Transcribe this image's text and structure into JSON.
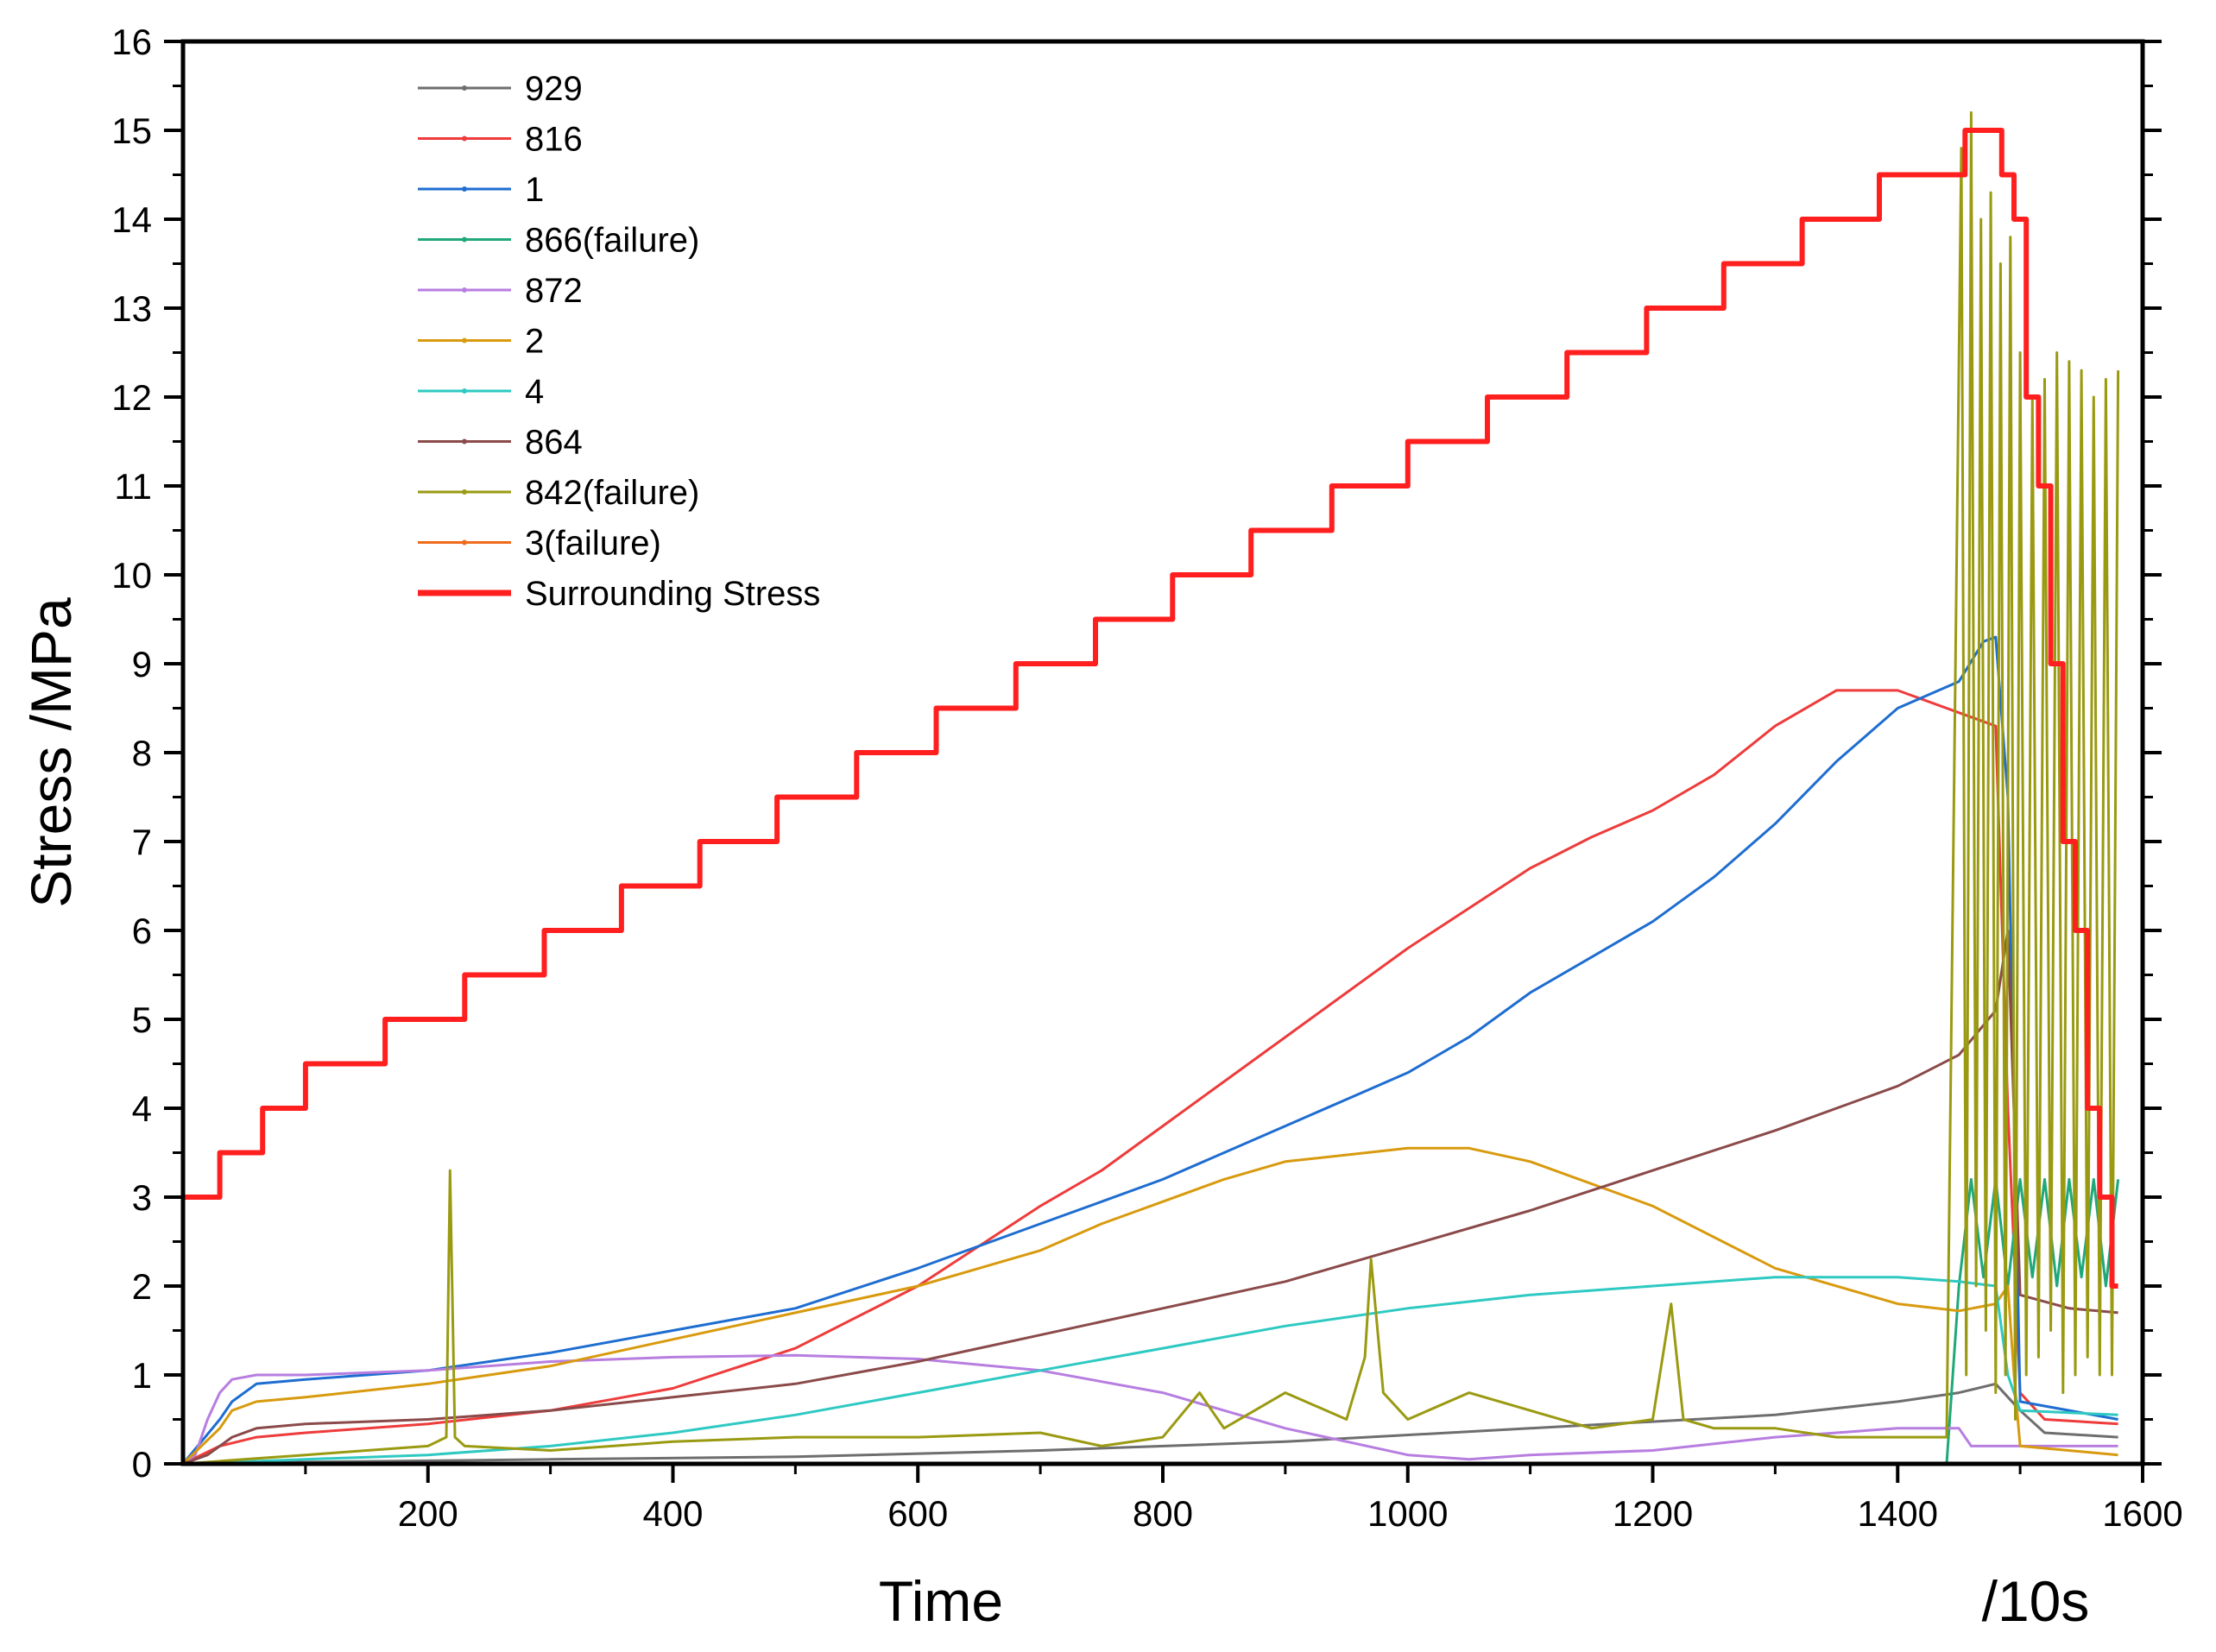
{
  "chart_data": {
    "type": "line",
    "title": "",
    "xlabel": "Time",
    "xlabel_unit": "/10s",
    "ylabel": "Stress /MPa",
    "xlim": [
      0,
      1600
    ],
    "ylim": [
      0,
      16
    ],
    "x_ticks": [
      200,
      400,
      600,
      800,
      1000,
      1200,
      1400,
      1600
    ],
    "y_ticks": [
      0,
      1,
      2,
      3,
      4,
      5,
      6,
      7,
      8,
      9,
      10,
      11,
      12,
      13,
      14,
      15,
      16
    ],
    "grid": false,
    "legend_position": "top-left",
    "series": [
      {
        "name": "929",
        "color": "#6e6e6e",
        "x": [
          0,
          100,
          300,
          500,
          700,
          900,
          1100,
          1300,
          1400,
          1450,
          1480,
          1500,
          1520,
          1580
        ],
        "y": [
          0,
          0.02,
          0.05,
          0.08,
          0.15,
          0.25,
          0.4,
          0.55,
          0.7,
          0.8,
          0.9,
          0.6,
          0.35,
          0.3
        ]
      },
      {
        "name": "816",
        "color": "#ee3b3b",
        "x": [
          0,
          30,
          60,
          100,
          200,
          300,
          400,
          500,
          600,
          700,
          750,
          800,
          850,
          900,
          950,
          1000,
          1050,
          1100,
          1150,
          1200,
          1250,
          1300,
          1350,
          1400,
          1450,
          1480,
          1490,
          1500,
          1520,
          1580
        ],
        "y": [
          0,
          0.2,
          0.3,
          0.35,
          0.45,
          0.6,
          0.85,
          1.3,
          2.0,
          2.9,
          3.3,
          3.8,
          4.3,
          4.8,
          5.3,
          5.8,
          6.25,
          6.7,
          7.05,
          7.35,
          7.75,
          8.3,
          8.7,
          8.7,
          8.45,
          8.3,
          4.0,
          0.8,
          0.5,
          0.45
        ]
      },
      {
        "name": "1",
        "color": "#1e6dd0",
        "x": [
          0,
          30,
          40,
          60,
          100,
          200,
          300,
          400,
          500,
          600,
          700,
          750,
          800,
          900,
          1000,
          1050,
          1100,
          1150,
          1200,
          1250,
          1300,
          1350,
          1400,
          1450,
          1470,
          1480,
          1490,
          1500,
          1580
        ],
        "y": [
          0,
          0.5,
          0.7,
          0.9,
          0.95,
          1.05,
          1.25,
          1.5,
          1.75,
          2.2,
          2.7,
          2.95,
          3.2,
          3.8,
          4.4,
          4.8,
          5.3,
          5.7,
          6.1,
          6.6,
          7.2,
          7.9,
          8.5,
          8.8,
          9.25,
          9.3,
          7.5,
          0.7,
          0.5
        ]
      },
      {
        "name": "866(failure)",
        "color": "#1fa87a",
        "x": [
          0,
          1440,
          1450,
          1460,
          1470,
          1480,
          1490,
          1500,
          1510,
          1520,
          1530,
          1540,
          1550,
          1560,
          1570,
          1580
        ],
        "y": [
          0,
          0,
          2.0,
          3.2,
          2.1,
          3.2,
          2.0,
          3.2,
          2.1,
          3.2,
          2.0,
          3.2,
          2.1,
          3.2,
          2.0,
          3.2
        ]
      },
      {
        "name": "872",
        "color": "#b77ee0",
        "x": [
          0,
          10,
          20,
          30,
          40,
          60,
          100,
          200,
          300,
          400,
          500,
          600,
          700,
          800,
          900,
          1000,
          1050,
          1100,
          1200,
          1300,
          1400,
          1450,
          1460,
          1500,
          1580
        ],
        "y": [
          0,
          0.1,
          0.5,
          0.8,
          0.95,
          1.0,
          1.0,
          1.05,
          1.15,
          1.2,
          1.22,
          1.18,
          1.05,
          0.8,
          0.4,
          0.1,
          0.05,
          0.1,
          0.15,
          0.3,
          0.4,
          0.4,
          0.2,
          0.2,
          0.2
        ]
      },
      {
        "name": "2",
        "color": "#d89a0e",
        "x": [
          0,
          30,
          40,
          60,
          100,
          200,
          300,
          400,
          500,
          600,
          700,
          750,
          780,
          800,
          850,
          900,
          1000,
          1050,
          1100,
          1200,
          1300,
          1400,
          1450,
          1480,
          1490,
          1495,
          1500,
          1580
        ],
        "y": [
          0,
          0.4,
          0.6,
          0.7,
          0.75,
          0.9,
          1.1,
          1.4,
          1.7,
          2.0,
          2.4,
          2.7,
          2.85,
          2.95,
          3.2,
          3.4,
          3.55,
          3.55,
          3.4,
          2.9,
          2.2,
          1.8,
          1.72,
          1.8,
          2.0,
          1.0,
          0.2,
          0.1
        ]
      },
      {
        "name": "4",
        "color": "#2ec9c2",
        "x": [
          0,
          100,
          200,
          300,
          400,
          500,
          600,
          700,
          800,
          900,
          1000,
          1100,
          1200,
          1300,
          1400,
          1450,
          1480,
          1490,
          1500,
          1580
        ],
        "y": [
          0,
          0.05,
          0.1,
          0.2,
          0.35,
          0.55,
          0.8,
          1.05,
          1.3,
          1.55,
          1.75,
          1.9,
          2.0,
          2.1,
          2.1,
          2.05,
          2.0,
          1.0,
          0.6,
          0.55
        ]
      },
      {
        "name": "864",
        "color": "#8b4a4a",
        "x": [
          0,
          20,
          40,
          60,
          100,
          200,
          300,
          400,
          500,
          600,
          700,
          800,
          900,
          1000,
          1100,
          1200,
          1300,
          1400,
          1450,
          1480,
          1490,
          1500,
          1540,
          1580
        ],
        "y": [
          0,
          0.1,
          0.3,
          0.4,
          0.45,
          0.5,
          0.6,
          0.75,
          0.9,
          1.15,
          1.45,
          1.75,
          2.05,
          2.45,
          2.85,
          3.3,
          3.75,
          4.25,
          4.6,
          5.1,
          6.0,
          1.9,
          1.75,
          1.7
        ]
      },
      {
        "name": "842(failure)",
        "color": "#9a9a12",
        "x": [
          0,
          50,
          100,
          150,
          200,
          215,
          218,
          222,
          230,
          300,
          400,
          500,
          600,
          700,
          750,
          800,
          830,
          850,
          900,
          950,
          965,
          970,
          980,
          1000,
          1050,
          1100,
          1150,
          1200,
          1215,
          1225,
          1250,
          1300,
          1350,
          1400,
          1440,
          1452,
          1456,
          1460,
          1464,
          1468,
          1472,
          1476,
          1480,
          1484,
          1488,
          1492,
          1496,
          1500,
          1505,
          1510,
          1515,
          1520,
          1525,
          1530,
          1535,
          1540,
          1545,
          1550,
          1555,
          1560,
          1565,
          1570,
          1575,
          1580
        ],
        "y": [
          0,
          0.05,
          0.1,
          0.15,
          0.2,
          0.3,
          3.3,
          0.3,
          0.2,
          0.15,
          0.25,
          0.3,
          0.3,
          0.35,
          0.2,
          0.3,
          0.8,
          0.4,
          0.8,
          0.5,
          1.2,
          2.3,
          0.8,
          0.5,
          0.8,
          0.6,
          0.4,
          0.5,
          1.8,
          0.5,
          0.4,
          0.4,
          0.3,
          0.3,
          0.3,
          14.8,
          1.0,
          15.2,
          2.0,
          14.0,
          1.5,
          14.3,
          0.8,
          13.5,
          1.0,
          13.8,
          0.5,
          12.5,
          1.0,
          12.0,
          1.2,
          12.2,
          1.5,
          12.5,
          0.8,
          12.4,
          1.0,
          12.3,
          1.2,
          12.0,
          1.0,
          12.2,
          1.0,
          12.3
        ]
      },
      {
        "name": "3(failure)",
        "color": "#ee6a1c",
        "x": [
          0,
          1400,
          1440,
          1450,
          1460,
          1470,
          1480,
          1490,
          1500,
          1580
        ],
        "y": [
          0,
          0,
          0,
          0,
          0,
          0,
          0,
          0,
          0,
          0
        ]
      },
      {
        "name": "Surrounding Stress",
        "color": "#ff1f1f",
        "thick": true,
        "x": [
          0,
          30,
          30,
          65,
          65,
          100,
          100,
          165,
          165,
          230,
          230,
          295,
          295,
          358,
          358,
          422,
          422,
          485,
          485,
          550,
          550,
          615,
          615,
          680,
          680,
          745,
          745,
          808,
          808,
          872,
          872,
          938,
          938,
          1000,
          1000,
          1065,
          1065,
          1130,
          1130,
          1195,
          1195,
          1258,
          1258,
          1322,
          1322,
          1385,
          1385,
          1455,
          1455,
          1485,
          1485,
          1495,
          1495,
          1505,
          1505,
          1515,
          1515,
          1525,
          1525,
          1535,
          1535,
          1545,
          1545,
          1555,
          1555,
          1565,
          1565,
          1575,
          1575,
          1580
        ],
        "y": [
          3.0,
          3.0,
          3.5,
          3.5,
          4.0,
          4.0,
          4.5,
          4.5,
          5.0,
          5.0,
          5.5,
          5.5,
          6.0,
          6.0,
          6.5,
          6.5,
          7.0,
          7.0,
          7.5,
          7.5,
          8.0,
          8.0,
          8.5,
          8.5,
          9.0,
          9.0,
          9.5,
          9.5,
          10.0,
          10.0,
          10.5,
          10.5,
          11.0,
          11.0,
          11.5,
          11.5,
          12.0,
          12.0,
          12.5,
          12.5,
          13.0,
          13.0,
          13.5,
          13.5,
          14.0,
          14.0,
          14.5,
          14.5,
          15.0,
          15.0,
          14.5,
          14.5,
          14.0,
          14.0,
          12.0,
          12.0,
          11.0,
          11.0,
          9.0,
          9.0,
          7.0,
          7.0,
          6.0,
          6.0,
          4.0,
          4.0,
          3.0,
          3.0,
          2.0,
          2.0
        ]
      }
    ]
  }
}
